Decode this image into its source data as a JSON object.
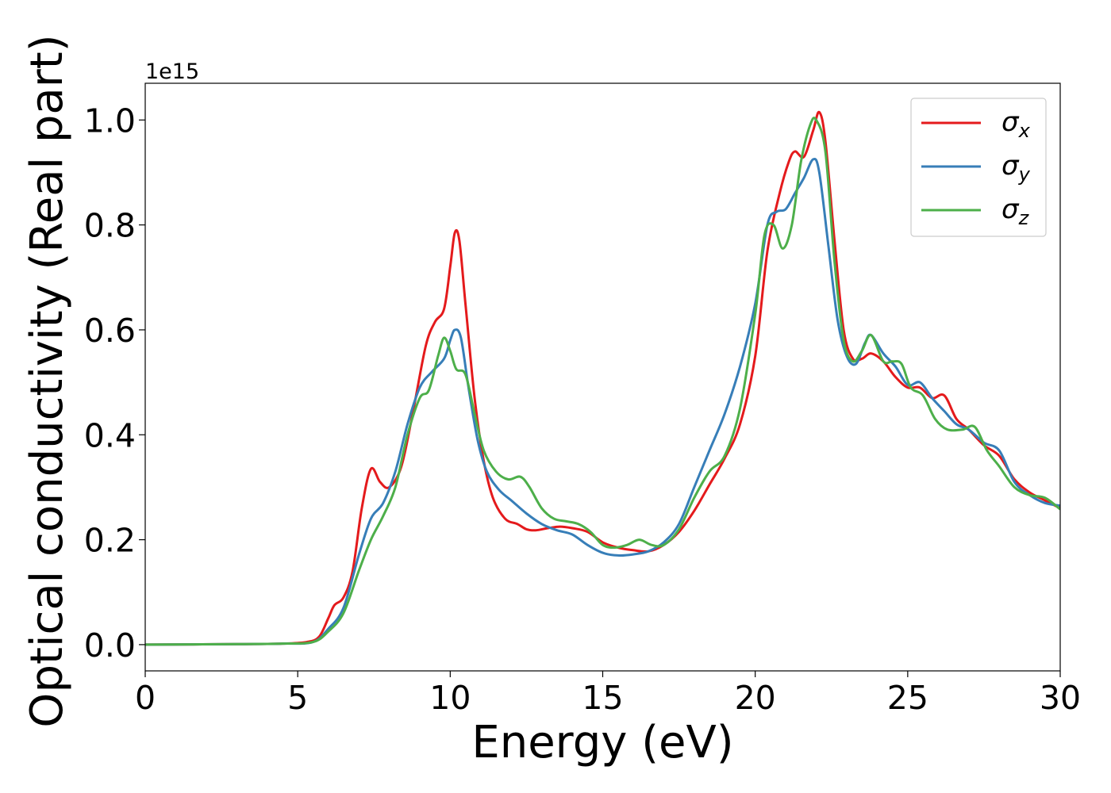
{
  "chart_data": {
    "type": "line",
    "xlabel": "Energy (eV)",
    "ylabel": "Optical conductivity (Real part)",
    "y_offset_text": "1e15",
    "y_scale": 1000000000000000.0,
    "xlim": [
      0,
      30
    ],
    "ylim": [
      -0.05,
      1.07
    ],
    "x_ticks": [
      0,
      5,
      10,
      15,
      20,
      25,
      30
    ],
    "x_tick_labels": [
      "0",
      "5",
      "10",
      "15",
      "20",
      "25",
      "30"
    ],
    "y_ticks": [
      0.0,
      0.2,
      0.4,
      0.6,
      0.8,
      1.0
    ],
    "y_tick_labels": [
      "0.0",
      "0.2",
      "0.4",
      "0.6",
      "0.8",
      "1.0"
    ],
    "grid": false,
    "legend_position": "top-right",
    "series": [
      {
        "name": "σ",
        "subscript": "x",
        "color": "#e41a1c",
        "points": [
          [
            0,
            0
          ],
          [
            3,
            0.001
          ],
          [
            4.5,
            0.002
          ],
          [
            5.3,
            0.005
          ],
          [
            5.7,
            0.015
          ],
          [
            6.0,
            0.05
          ],
          [
            6.2,
            0.075
          ],
          [
            6.5,
            0.09
          ],
          [
            6.8,
            0.14
          ],
          [
            7.1,
            0.26
          ],
          [
            7.4,
            0.335
          ],
          [
            7.7,
            0.31
          ],
          [
            8.0,
            0.3
          ],
          [
            8.4,
            0.34
          ],
          [
            8.8,
            0.45
          ],
          [
            9.2,
            0.57
          ],
          [
            9.5,
            0.615
          ],
          [
            9.8,
            0.64
          ],
          [
            10.0,
            0.72
          ],
          [
            10.15,
            0.785
          ],
          [
            10.3,
            0.77
          ],
          [
            10.5,
            0.65
          ],
          [
            10.8,
            0.47
          ],
          [
            11.1,
            0.35
          ],
          [
            11.4,
            0.28
          ],
          [
            11.8,
            0.24
          ],
          [
            12.2,
            0.23
          ],
          [
            12.5,
            0.22
          ],
          [
            12.8,
            0.218
          ],
          [
            13.2,
            0.222
          ],
          [
            13.6,
            0.225
          ],
          [
            14.0,
            0.222
          ],
          [
            14.5,
            0.215
          ],
          [
            15.0,
            0.195
          ],
          [
            15.5,
            0.185
          ],
          [
            16.0,
            0.18
          ],
          [
            16.5,
            0.178
          ],
          [
            17.0,
            0.19
          ],
          [
            17.5,
            0.215
          ],
          [
            18.0,
            0.255
          ],
          [
            18.5,
            0.305
          ],
          [
            19.0,
            0.355
          ],
          [
            19.5,
            0.42
          ],
          [
            20.0,
            0.55
          ],
          [
            20.4,
            0.75
          ],
          [
            20.8,
            0.86
          ],
          [
            21.1,
            0.92
          ],
          [
            21.3,
            0.94
          ],
          [
            21.6,
            0.93
          ],
          [
            21.9,
            0.98
          ],
          [
            22.1,
            1.015
          ],
          [
            22.3,
            0.96
          ],
          [
            22.6,
            0.77
          ],
          [
            22.9,
            0.6
          ],
          [
            23.2,
            0.545
          ],
          [
            23.5,
            0.545
          ],
          [
            23.8,
            0.555
          ],
          [
            24.2,
            0.54
          ],
          [
            24.6,
            0.51
          ],
          [
            25.0,
            0.49
          ],
          [
            25.4,
            0.49
          ],
          [
            25.8,
            0.47
          ],
          [
            26.2,
            0.475
          ],
          [
            26.6,
            0.43
          ],
          [
            27.0,
            0.41
          ],
          [
            27.5,
            0.38
          ],
          [
            28.0,
            0.36
          ],
          [
            28.5,
            0.315
          ],
          [
            29.0,
            0.29
          ],
          [
            29.5,
            0.275
          ],
          [
            30.0,
            0.26
          ]
        ]
      },
      {
        "name": "σ",
        "subscript": "y",
        "color": "#377eb8",
        "points": [
          [
            0,
            0
          ],
          [
            3,
            0.001
          ],
          [
            4.5,
            0.002
          ],
          [
            5.5,
            0.005
          ],
          [
            6.0,
            0.03
          ],
          [
            6.5,
            0.07
          ],
          [
            7.0,
            0.17
          ],
          [
            7.4,
            0.24
          ],
          [
            7.8,
            0.27
          ],
          [
            8.2,
            0.33
          ],
          [
            8.6,
            0.42
          ],
          [
            9.0,
            0.49
          ],
          [
            9.4,
            0.52
          ],
          [
            9.8,
            0.545
          ],
          [
            10.0,
            0.58
          ],
          [
            10.15,
            0.6
          ],
          [
            10.35,
            0.585
          ],
          [
            10.6,
            0.49
          ],
          [
            10.9,
            0.39
          ],
          [
            11.2,
            0.33
          ],
          [
            11.6,
            0.295
          ],
          [
            12.0,
            0.275
          ],
          [
            12.5,
            0.25
          ],
          [
            13.0,
            0.23
          ],
          [
            13.5,
            0.218
          ],
          [
            14.0,
            0.21
          ],
          [
            14.5,
            0.19
          ],
          [
            15.0,
            0.175
          ],
          [
            15.5,
            0.17
          ],
          [
            16.0,
            0.172
          ],
          [
            16.5,
            0.178
          ],
          [
            17.0,
            0.195
          ],
          [
            17.5,
            0.23
          ],
          [
            18.0,
            0.3
          ],
          [
            18.5,
            0.37
          ],
          [
            19.0,
            0.44
          ],
          [
            19.5,
            0.53
          ],
          [
            20.0,
            0.65
          ],
          [
            20.4,
            0.8
          ],
          [
            20.7,
            0.825
          ],
          [
            21.0,
            0.83
          ],
          [
            21.3,
            0.86
          ],
          [
            21.6,
            0.89
          ],
          [
            21.9,
            0.925
          ],
          [
            22.1,
            0.9
          ],
          [
            22.4,
            0.76
          ],
          [
            22.7,
            0.62
          ],
          [
            23.0,
            0.55
          ],
          [
            23.3,
            0.535
          ],
          [
            23.6,
            0.575
          ],
          [
            23.8,
            0.59
          ],
          [
            24.2,
            0.555
          ],
          [
            24.6,
            0.53
          ],
          [
            25.0,
            0.495
          ],
          [
            25.4,
            0.5
          ],
          [
            25.8,
            0.47
          ],
          [
            26.2,
            0.445
          ],
          [
            26.6,
            0.42
          ],
          [
            27.0,
            0.41
          ],
          [
            27.5,
            0.385
          ],
          [
            28.0,
            0.37
          ],
          [
            28.5,
            0.31
          ],
          [
            29.0,
            0.285
          ],
          [
            29.5,
            0.27
          ],
          [
            30.0,
            0.265
          ]
        ]
      },
      {
        "name": "σ",
        "subscript": "z",
        "color": "#4daf4a",
        "points": [
          [
            0,
            0
          ],
          [
            3,
            0.001
          ],
          [
            4.5,
            0.002
          ],
          [
            5.5,
            0.005
          ],
          [
            6.0,
            0.025
          ],
          [
            6.5,
            0.06
          ],
          [
            7.0,
            0.14
          ],
          [
            7.4,
            0.2
          ],
          [
            7.8,
            0.245
          ],
          [
            8.2,
            0.3
          ],
          [
            8.6,
            0.4
          ],
          [
            9.0,
            0.47
          ],
          [
            9.3,
            0.485
          ],
          [
            9.6,
            0.55
          ],
          [
            9.8,
            0.585
          ],
          [
            10.0,
            0.56
          ],
          [
            10.2,
            0.525
          ],
          [
            10.5,
            0.515
          ],
          [
            10.8,
            0.44
          ],
          [
            11.1,
            0.37
          ],
          [
            11.5,
            0.33
          ],
          [
            11.9,
            0.315
          ],
          [
            12.3,
            0.32
          ],
          [
            12.6,
            0.3
          ],
          [
            13.0,
            0.26
          ],
          [
            13.4,
            0.24
          ],
          [
            13.8,
            0.235
          ],
          [
            14.2,
            0.23
          ],
          [
            14.6,
            0.215
          ],
          [
            15.0,
            0.19
          ],
          [
            15.4,
            0.185
          ],
          [
            15.8,
            0.19
          ],
          [
            16.2,
            0.2
          ],
          [
            16.6,
            0.19
          ],
          [
            17.0,
            0.19
          ],
          [
            17.5,
            0.22
          ],
          [
            18.0,
            0.28
          ],
          [
            18.5,
            0.33
          ],
          [
            19.0,
            0.36
          ],
          [
            19.5,
            0.45
          ],
          [
            20.0,
            0.63
          ],
          [
            20.3,
            0.78
          ],
          [
            20.6,
            0.8
          ],
          [
            20.9,
            0.755
          ],
          [
            21.2,
            0.8
          ],
          [
            21.5,
            0.92
          ],
          [
            21.8,
            0.99
          ],
          [
            22.0,
            1.0
          ],
          [
            22.3,
            0.94
          ],
          [
            22.6,
            0.73
          ],
          [
            22.9,
            0.58
          ],
          [
            23.2,
            0.54
          ],
          [
            23.5,
            0.56
          ],
          [
            23.8,
            0.59
          ],
          [
            24.2,
            0.54
          ],
          [
            24.5,
            0.54
          ],
          [
            24.8,
            0.535
          ],
          [
            25.1,
            0.49
          ],
          [
            25.5,
            0.475
          ],
          [
            25.9,
            0.43
          ],
          [
            26.3,
            0.41
          ],
          [
            26.8,
            0.41
          ],
          [
            27.2,
            0.415
          ],
          [
            27.6,
            0.37
          ],
          [
            28.0,
            0.34
          ],
          [
            28.5,
            0.3
          ],
          [
            29.0,
            0.285
          ],
          [
            29.5,
            0.28
          ],
          [
            30.0,
            0.258
          ]
        ]
      }
    ]
  }
}
